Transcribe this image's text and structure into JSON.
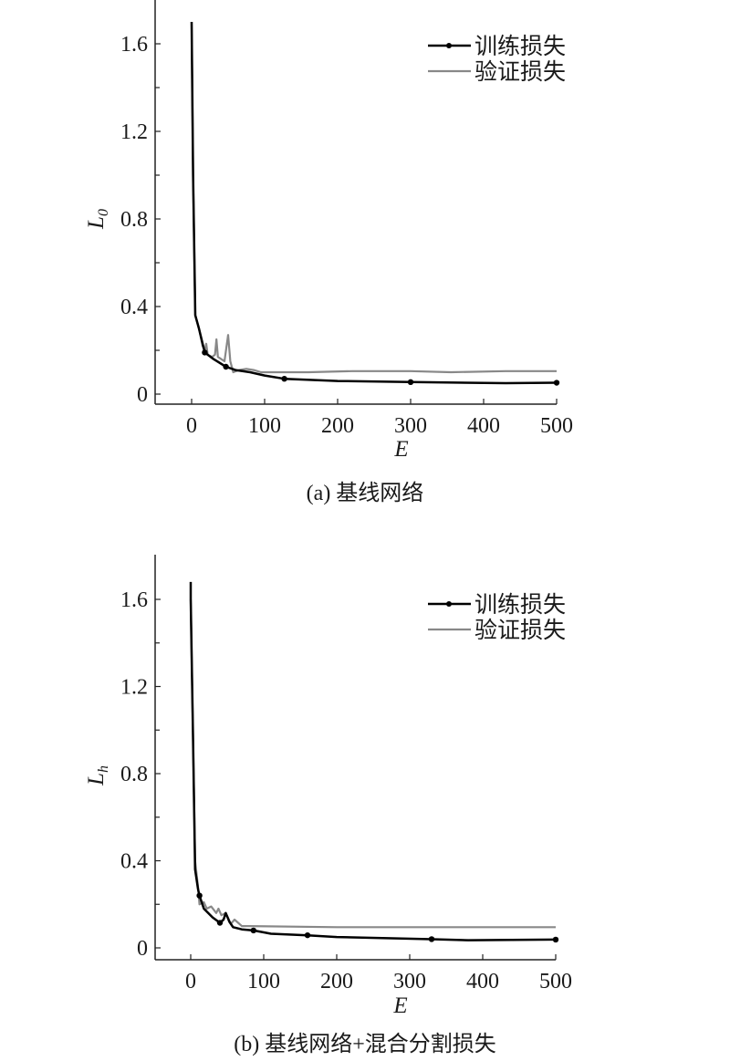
{
  "chart_data": [
    {
      "type": "line",
      "caption": "(a) 基线网络",
      "xlabel": "E",
      "ylabel": {
        "main": "L",
        "sub": "0"
      },
      "xlim": [
        -50,
        500
      ],
      "ylim": [
        0,
        1.75
      ],
      "xticks": [
        0,
        100,
        200,
        300,
        400,
        500
      ],
      "yticks": [
        0,
        0.4,
        0.8,
        1.2,
        1.6
      ],
      "ytick_labels": [
        "0",
        "0.4",
        "0.8",
        "1.2",
        "1.6"
      ],
      "yminor": [
        0.2,
        0.6,
        1.0,
        1.4
      ],
      "grid": false,
      "legend_position": "top-right",
      "series": [
        {
          "name": "训练损失",
          "color": "#000000",
          "markers": [
            [
              18,
              0.19
            ],
            [
              47,
              0.125
            ],
            [
              127,
              0.07
            ],
            [
              300,
              0.055
            ],
            [
              500,
              0.052
            ]
          ],
          "points": [
            [
              0,
              1.7
            ],
            [
              2,
              1.0
            ],
            [
              5,
              0.36
            ],
            [
              10,
              0.3
            ],
            [
              18,
              0.19
            ],
            [
              30,
              0.16
            ],
            [
              47,
              0.125
            ],
            [
              60,
              0.11
            ],
            [
              80,
              0.1
            ],
            [
              100,
              0.085
            ],
            [
              127,
              0.07
            ],
            [
              200,
              0.06
            ],
            [
              300,
              0.055
            ],
            [
              430,
              0.05
            ],
            [
              500,
              0.052
            ]
          ]
        },
        {
          "name": "验证损失",
          "color": "#888888",
          "markers": [],
          "points": [
            [
              0,
              1.7
            ],
            [
              2,
              1.0
            ],
            [
              5,
              0.36
            ],
            [
              10,
              0.3
            ],
            [
              15,
              0.22
            ],
            [
              18,
              0.2
            ],
            [
              20,
              0.23
            ],
            [
              22,
              0.18
            ],
            [
              28,
              0.17
            ],
            [
              32,
              0.18
            ],
            [
              34,
              0.25
            ],
            [
              36,
              0.17
            ],
            [
              45,
              0.15
            ],
            [
              50,
              0.27
            ],
            [
              53,
              0.15
            ],
            [
              57,
              0.1
            ],
            [
              65,
              0.11
            ],
            [
              75,
              0.115
            ],
            [
              85,
              0.11
            ],
            [
              95,
              0.1
            ],
            [
              160,
              0.1
            ],
            [
              220,
              0.105
            ],
            [
              300,
              0.105
            ],
            [
              355,
              0.1
            ],
            [
              430,
              0.105
            ],
            [
              500,
              0.105
            ]
          ]
        }
      ]
    },
    {
      "type": "line",
      "caption": "(b) 基线网络+混合分割损失",
      "xlabel": "E",
      "ylabel": {
        "main": "L",
        "sub": "h"
      },
      "xlim": [
        -50,
        500
      ],
      "ylim": [
        0,
        1.8
      ],
      "xticks": [
        0,
        100,
        200,
        300,
        400,
        500
      ],
      "yticks": [
        0,
        0.4,
        0.8,
        1.2,
        1.6
      ],
      "ytick_labels": [
        "0",
        "0.4",
        "0.8",
        "1.2",
        "1.6"
      ],
      "yminor": [
        0.2,
        0.6,
        1.0,
        1.4
      ],
      "grid": false,
      "legend_position": "top-right",
      "series": [
        {
          "name": "训练损失",
          "color": "#000000",
          "markers": [
            [
              12,
              0.24
            ],
            [
              40,
              0.115
            ],
            [
              86,
              0.08
            ],
            [
              160,
              0.058
            ],
            [
              330,
              0.04
            ],
            [
              500,
              0.038
            ]
          ],
          "points": [
            [
              0,
              1.68
            ],
            [
              0,
              1.6
            ],
            [
              3,
              1.0
            ],
            [
              6,
              0.36
            ],
            [
              10,
              0.27
            ],
            [
              12,
              0.24
            ],
            [
              18,
              0.18
            ],
            [
              30,
              0.14
            ],
            [
              40,
              0.115
            ],
            [
              45,
              0.13
            ],
            [
              48,
              0.16
            ],
            [
              53,
              0.12
            ],
            [
              58,
              0.095
            ],
            [
              70,
              0.085
            ],
            [
              86,
              0.08
            ],
            [
              110,
              0.065
            ],
            [
              160,
              0.058
            ],
            [
              200,
              0.05
            ],
            [
              330,
              0.04
            ],
            [
              380,
              0.035
            ],
            [
              500,
              0.038
            ]
          ]
        },
        {
          "name": "验证损失",
          "color": "#888888",
          "markers": [],
          "points": [
            [
              0,
              1.6
            ],
            [
              3,
              1.0
            ],
            [
              6,
              0.4
            ],
            [
              10,
              0.28
            ],
            [
              12,
              0.2
            ],
            [
              18,
              0.21
            ],
            [
              22,
              0.18
            ],
            [
              28,
              0.19
            ],
            [
              35,
              0.16
            ],
            [
              38,
              0.18
            ],
            [
              42,
              0.15
            ],
            [
              48,
              0.16
            ],
            [
              55,
              0.11
            ],
            [
              60,
              0.13
            ],
            [
              70,
              0.1
            ],
            [
              80,
              0.1
            ],
            [
              200,
              0.095
            ],
            [
              500,
              0.095
            ]
          ]
        }
      ]
    }
  ]
}
